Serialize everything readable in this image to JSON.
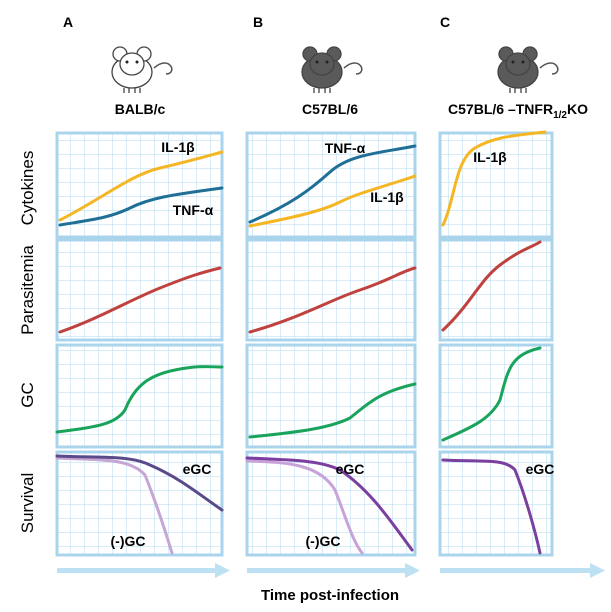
{
  "panel_letters": [
    "A",
    "B",
    "C"
  ],
  "strains": [
    {
      "parts": [
        "BALB/c"
      ]
    },
    {
      "parts": [
        "C57BL/6"
      ]
    },
    {
      "parts": [
        "C57BL/6 –TNFR",
        "1/2",
        "KO"
      ]
    }
  ],
  "row_labels": [
    "Cytokines",
    "Parasitemia",
    "GC",
    "Survival"
  ],
  "curve_labels": {
    "a_cytokines": [
      "IL-1β",
      "TNF-α"
    ],
    "b_cytokines": [
      "TNF-α",
      "IL-1β"
    ],
    "c_cytokines": [
      "IL-1β"
    ],
    "a_survival": [
      "eGC",
      "(-)GC"
    ],
    "b_survival": [
      "eGC",
      "(-)GC"
    ],
    "c_survival": [
      "eGC"
    ]
  },
  "x_axis_label": "Time post-infection"
}
